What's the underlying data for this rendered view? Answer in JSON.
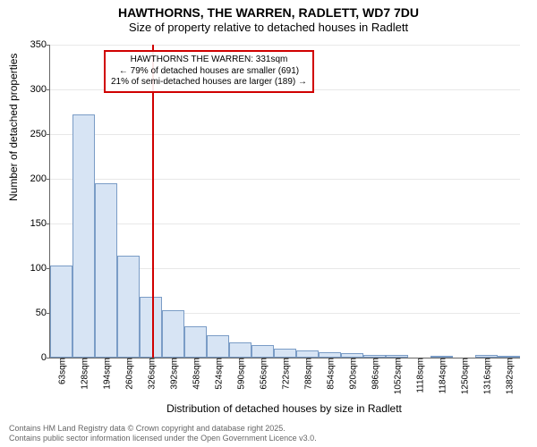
{
  "title": "HAWTHORNS, THE WARREN, RADLETT, WD7 7DU",
  "subtitle": "Size of property relative to detached houses in Radlett",
  "ylabel": "Number of detached properties",
  "xlabel": "Distribution of detached houses by size in Radlett",
  "footer_line1": "Contains HM Land Registry data © Crown copyright and database right 2025.",
  "footer_line2": "Contains public sector information licensed under the Open Government Licence v3.0.",
  "chart": {
    "type": "histogram",
    "ylim": [
      0,
      350
    ],
    "ytick_step": 50,
    "bar_fill": "#d7e4f4",
    "bar_stroke": "#7a9cc6",
    "grid_color": "#e8e8e8",
    "marker_color": "#d00000",
    "marker_x": 331,
    "categories": [
      "63sqm",
      "128sqm",
      "194sqm",
      "260sqm",
      "326sqm",
      "392sqm",
      "458sqm",
      "524sqm",
      "590sqm",
      "656sqm",
      "722sqm",
      "788sqm",
      "854sqm",
      "920sqm",
      "986sqm",
      "1052sqm",
      "1118sqm",
      "1184sqm",
      "1250sqm",
      "1316sqm",
      "1382sqm"
    ],
    "x_start": 63,
    "x_step": 66,
    "values": [
      103,
      272,
      195,
      114,
      68,
      53,
      35,
      25,
      17,
      14,
      10,
      8,
      6,
      5,
      3,
      3,
      0,
      2,
      0,
      3,
      2
    ]
  },
  "annotation": {
    "line1": "HAWTHORNS THE WARREN: 331sqm",
    "line2": "← 79% of detached houses are smaller (691)",
    "line3": "21% of semi-detached houses are larger (189) →"
  }
}
